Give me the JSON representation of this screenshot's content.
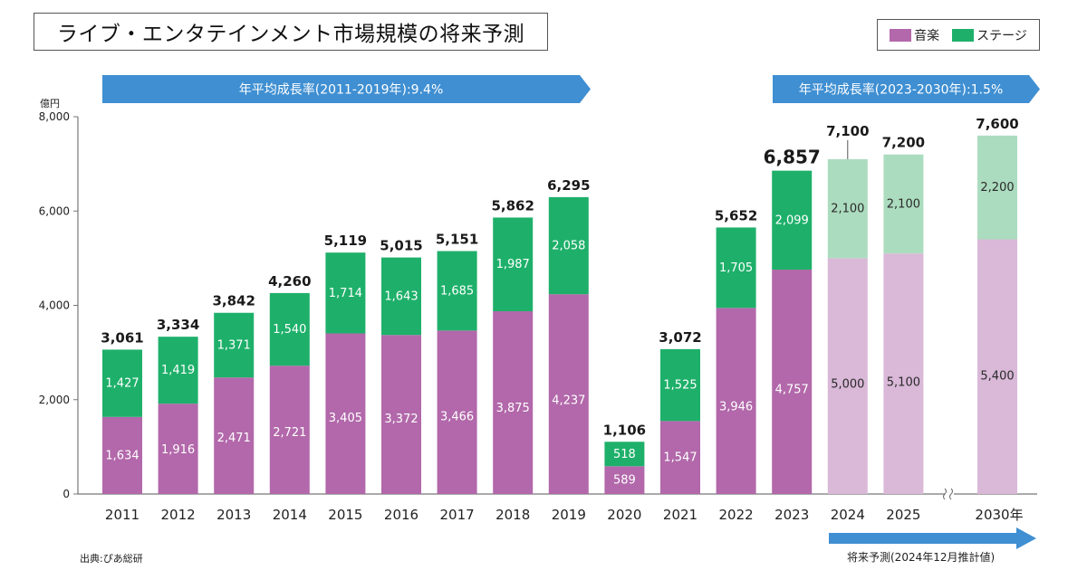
{
  "title": "ライブ・エンタテインメント市場規模の将来予測",
  "legend": [
    {
      "label": "音楽",
      "color": "#b268aa"
    },
    {
      "label": "ステージ",
      "color": "#1eb06a"
    }
  ],
  "growth_banners": [
    {
      "label": "年平均成長率(2011-2019年):9.4%"
    },
    {
      "label": "年平均成長率(2023-2030年):1.5%"
    }
  ],
  "source": "出典:ぴあ総研",
  "forecast_note": "将来予測(2024年12月推計値)",
  "colors": {
    "music": "#b268aa",
    "stage": "#1eb06a",
    "music_forecast": "#d9b8d8",
    "stage_forecast": "#acdcbf",
    "banner": "#3f8fd2",
    "axis": "#777777"
  },
  "chart_data": {
    "type": "bar",
    "stacked": true,
    "title": "ライブ・エンタテインメント市場規模の将来予測",
    "ylabel": "億円",
    "xlabel": "",
    "ylim": [
      0,
      8000
    ],
    "yticks": [
      0,
      2000,
      4000,
      6000,
      8000
    ],
    "ytick_labels": [
      "0",
      "2,000",
      "4,000",
      "6,000",
      "8,000"
    ],
    "grid": false,
    "legend_position": "top-right",
    "categories": [
      "2011",
      "2012",
      "2013",
      "2014",
      "2015",
      "2016",
      "2017",
      "2018",
      "2019",
      "2020",
      "2021",
      "2022",
      "2023",
      "2024",
      "2025",
      "2030年"
    ],
    "forecast": [
      false,
      false,
      false,
      false,
      false,
      false,
      false,
      false,
      false,
      false,
      false,
      false,
      false,
      true,
      true,
      true
    ],
    "axis_break_before": "2030年",
    "series": [
      {
        "name": "音楽",
        "values": [
          1634,
          1916,
          2471,
          2721,
          3405,
          3372,
          3466,
          3875,
          4237,
          589,
          1547,
          3946,
          4757,
          5000,
          5100,
          5400
        ],
        "labels": [
          "1,634",
          "1,916",
          "2,471",
          "2,721",
          "3,405",
          "3,372",
          "3,466",
          "3,875",
          "4,237",
          "589",
          "1,547",
          "3,946",
          "4,757",
          "5,000",
          "5,100",
          "5,400"
        ]
      },
      {
        "name": "ステージ",
        "values": [
          1427,
          1419,
          1371,
          1540,
          1714,
          1643,
          1685,
          1987,
          2058,
          518,
          1525,
          1705,
          2099,
          2100,
          2100,
          2200
        ],
        "labels": [
          "1,427",
          "1,419",
          "1,371",
          "1,540",
          "1,714",
          "1,643",
          "1,685",
          "1,987",
          "2,058",
          "518",
          "1,525",
          "1,705",
          "2,099",
          "2,100",
          "2,100",
          "2,200"
        ]
      }
    ],
    "totals": [
      3061,
      3334,
      3842,
      4260,
      5119,
      5015,
      5151,
      5862,
      6295,
      1106,
      3072,
      5652,
      6857,
      7100,
      7200,
      7600
    ],
    "total_labels": [
      "3,061",
      "3,334",
      "3,842",
      "4,260",
      "5,119",
      "5,015",
      "5,151",
      "5,862",
      "6,295",
      "1,106",
      "3,072",
      "5,652",
      "6,857",
      "7,100",
      "7,200",
      "7,600"
    ],
    "annotations": [
      "年平均成長率(2011-2019年):9.4%",
      "年平均成長率(2023-2030年):1.5%",
      "将来予測(2024年12月推計値)"
    ]
  }
}
